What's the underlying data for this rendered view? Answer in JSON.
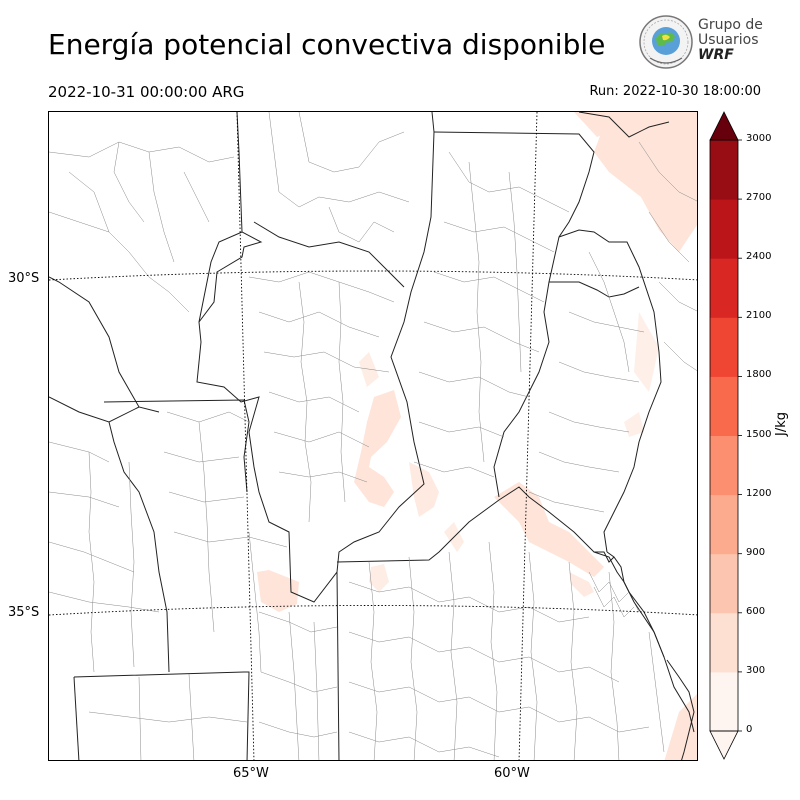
{
  "title": "Energía potencial convectiva disponible",
  "valid_time": "2022-10-31 00:00:00 ARG",
  "run_time": "Run: 2022-10-30 18:00:00",
  "logo": {
    "line1": "Grupo de",
    "line2": "Usuarios",
    "line3": "WRF",
    "icon": "globe-seal-icon"
  },
  "map": {
    "latitude_labels": [
      "30°S",
      "35°S"
    ],
    "longitude_labels": [
      "65°W",
      "60°W"
    ],
    "field": "CAPE",
    "colormap": "Reds"
  },
  "colorbar": {
    "units": "J/kg",
    "ticks": [
      "0",
      "300",
      "600",
      "900",
      "1200",
      "1500",
      "1800",
      "2100",
      "2400",
      "2700",
      "3000"
    ],
    "colors": [
      "#fff5f0",
      "#fee0d2",
      "#fcc5b0",
      "#fcab8f",
      "#fc8f6f",
      "#f9694c",
      "#ef4533",
      "#d92723",
      "#bb151a",
      "#980c13",
      "#67000d"
    ],
    "extend": "both"
  }
}
